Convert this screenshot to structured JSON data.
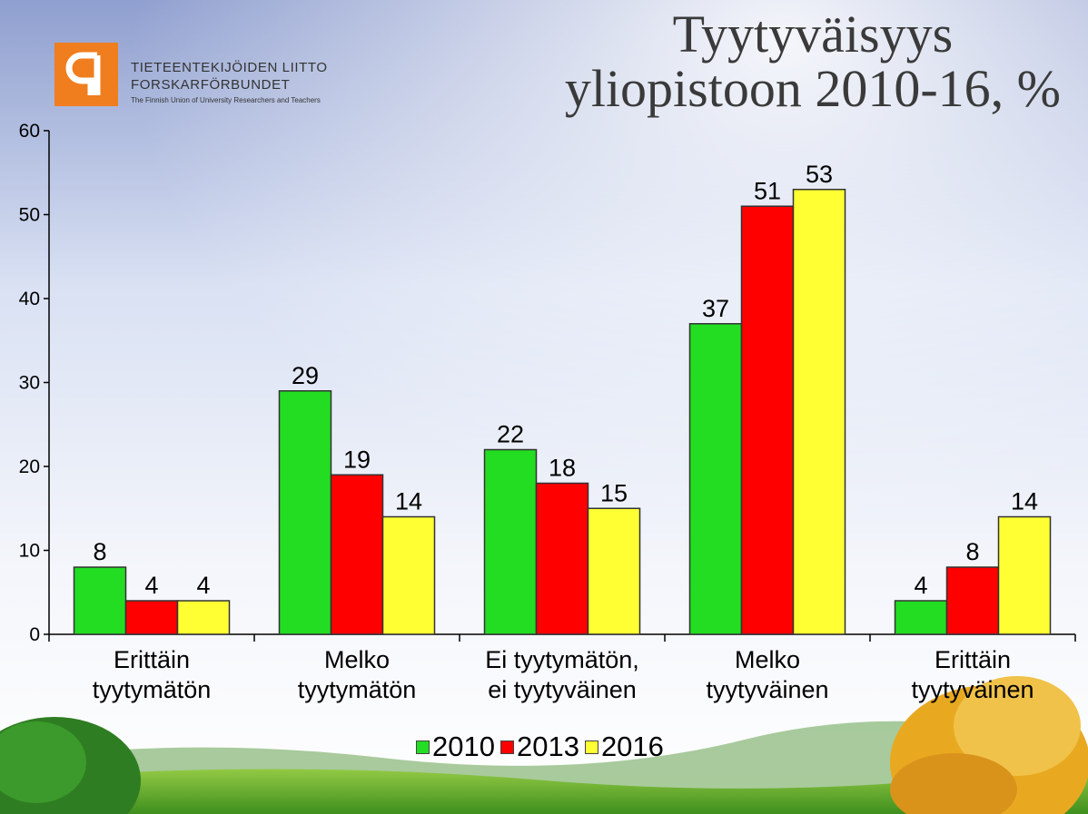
{
  "logo": {
    "line1": "TIETEENTEKIJÖIDEN LIITTO",
    "line2": "FORSKARFÖRBUNDET",
    "line3": "The Finnish Union of University Researchers and Teachers",
    "color": "#f07d1e"
  },
  "title_lines": [
    "Tyytyväisyys",
    "yliopistoon 2010-16, %"
  ],
  "chart_data": {
    "type": "bar",
    "title": "Tyytyväisyys yliopistoon 2010-16, %",
    "categories": [
      [
        "Erittäin",
        "tyytymätön"
      ],
      [
        "Melko",
        "tyytymätön"
      ],
      [
        "Ei tyytymätön,",
        "ei tyytyväinen"
      ],
      [
        "Melko",
        "tyytyväinen"
      ],
      [
        "Erittäin",
        "tyytyväinen"
      ]
    ],
    "series": [
      {
        "name": "2010",
        "color": "#22dd22",
        "values": [
          8,
          29,
          22,
          37,
          4
        ]
      },
      {
        "name": "2013",
        "color": "#ff0000",
        "values": [
          4,
          19,
          18,
          51,
          8
        ]
      },
      {
        "name": "2016",
        "color": "#ffff33",
        "values": [
          4,
          14,
          15,
          53,
          14
        ]
      }
    ],
    "yticks": [
      0,
      10,
      20,
      30,
      40,
      50,
      60
    ],
    "ylim": [
      0,
      60
    ],
    "grid": false,
    "legend_position": "bottom"
  }
}
